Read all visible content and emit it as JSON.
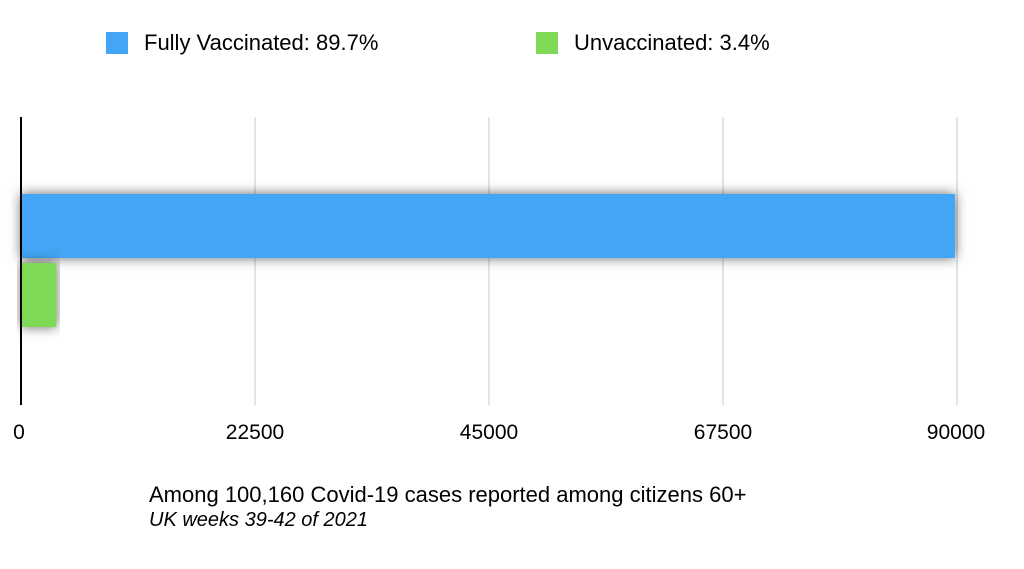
{
  "chart_data": {
    "type": "bar",
    "orientation": "horizontal",
    "series": [
      {
        "name": "Fully Vaccinated: 89.7%",
        "values": [
          89800
        ],
        "color": "#42a5f5"
      },
      {
        "name": "Unvaccinated: 3.4%",
        "values": [
          3400
        ],
        "color": "#7ed957"
      }
    ],
    "xlim": [
      0,
      90000
    ],
    "xticks": [
      "0",
      "22500",
      "45000",
      "67500",
      "90000"
    ],
    "grid": true,
    "legend_position": "top",
    "caption": "Among 100,160 Covid-19 cases reported among citizens 60+",
    "subcaption": "UK weeks 39-42 of 2021"
  }
}
